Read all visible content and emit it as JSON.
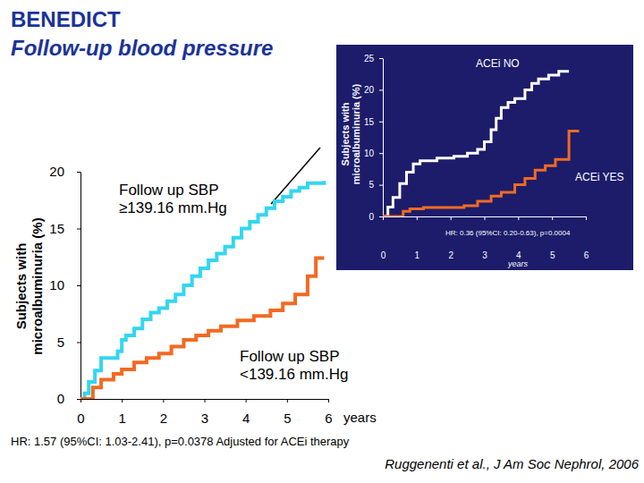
{
  "chart_data": [
    {
      "type": "line",
      "title": "BENEDICT",
      "subtitle": "Follow-up blood pressure",
      "x_label": "years",
      "y_label": "Subjects with\nmicroalbuminuria (%)",
      "xlim": [
        0,
        6
      ],
      "xticks": [
        0,
        1,
        2,
        3,
        4,
        5,
        6
      ],
      "ylim": [
        0,
        20
      ],
      "yticks": [
        0,
        5,
        10,
        15,
        20
      ],
      "grid": false,
      "line_style": "step",
      "series": [
        {
          "name": "Follow up SBP\n≥139.16 mm.Hg",
          "color": "#33d6f0",
          "x": [
            0,
            0.1,
            0.2,
            0.35,
            0.5,
            0.9,
            1.0,
            1.1,
            1.3,
            1.5,
            1.7,
            1.9,
            2.1,
            2.3,
            2.5,
            2.7,
            2.9,
            3.1,
            3.3,
            3.5,
            3.7,
            3.9,
            4.1,
            4.3,
            4.5,
            4.7,
            4.9,
            5.1,
            5.3,
            5.5,
            5.9
          ],
          "values": [
            0,
            0.5,
            1.5,
            2.5,
            3.6,
            4.2,
            5.2,
            5.6,
            6.2,
            7,
            7.6,
            8,
            8.6,
            9.2,
            10,
            10.8,
            11.5,
            12.2,
            12.8,
            13.4,
            14.2,
            15,
            15.6,
            16.2,
            16.8,
            17.4,
            17.8,
            18.3,
            18.6,
            19,
            19.2
          ]
        },
        {
          "name": "Follow up SBP\n<139.16 mm.Hg",
          "color": "#f26a22",
          "x": [
            0,
            0.3,
            0.5,
            0.8,
            1.0,
            1.3,
            1.6,
            1.9,
            2.2,
            2.5,
            2.8,
            3.1,
            3.4,
            3.8,
            4.2,
            4.6,
            4.9,
            5.2,
            5.5,
            5.7,
            5.9
          ],
          "values": [
            0,
            1.0,
            1.7,
            2.2,
            2.6,
            3.2,
            3.6,
            4.0,
            4.6,
            5.2,
            5.6,
            6.0,
            6.4,
            6.9,
            7.3,
            7.8,
            8.4,
            9.2,
            10.8,
            12.4,
            12.4
          ]
        }
      ],
      "annotations": [
        {
          "text": "HR: 1.57 (95%CI: 1.03-2.41), p=0.0378 Adjusted for ACEi therapy"
        },
        {
          "text": "Ruggenenti et al., J Am Soc Nephrol, 2006"
        }
      ]
    },
    {
      "type": "line",
      "x_label": "years",
      "y_label": "Subjects with\nmicroalbuminuria (%)",
      "xlim": [
        0,
        6
      ],
      "xticks": [
        0,
        1,
        2,
        3,
        4,
        5,
        6
      ],
      "ylim": [
        0,
        25
      ],
      "yticks": [
        0,
        5,
        10,
        15,
        20,
        25
      ],
      "grid": false,
      "line_style": "step",
      "series": [
        {
          "name": "ACEi NO",
          "color": "#ffffff",
          "x": [
            0,
            0.15,
            0.3,
            0.5,
            0.7,
            0.9,
            1.1,
            1.6,
            2.1,
            2.5,
            2.8,
            3.0,
            3.2,
            3.35,
            3.5,
            3.7,
            3.9,
            4.2,
            4.4,
            4.6,
            4.9,
            5.2,
            5.5
          ],
          "values": [
            0,
            1.5,
            3,
            5.2,
            7,
            8.3,
            8.8,
            9.2,
            9.5,
            10,
            10.6,
            11.8,
            13.7,
            15.5,
            17.2,
            18,
            18.6,
            20,
            21,
            21.7,
            22.3,
            22.9,
            22.9
          ]
        },
        {
          "name": "ACEi YES",
          "color": "#f26a22",
          "x": [
            0,
            0.6,
            0.8,
            1.2,
            2.4,
            2.8,
            3.2,
            3.5,
            3.9,
            4.2,
            4.5,
            4.8,
            5.1,
            5.5,
            5.6,
            5.8
          ],
          "values": [
            0,
            0.8,
            1.2,
            1.4,
            1.7,
            2.4,
            3.2,
            3.8,
            5,
            6,
            7.3,
            8,
            9,
            13.5,
            13.5,
            13.5
          ]
        }
      ],
      "annotations": [
        {
          "text": "HR: 0.36 (95%CI: 0.20-0.63), p=0.0004"
        }
      ]
    }
  ]
}
